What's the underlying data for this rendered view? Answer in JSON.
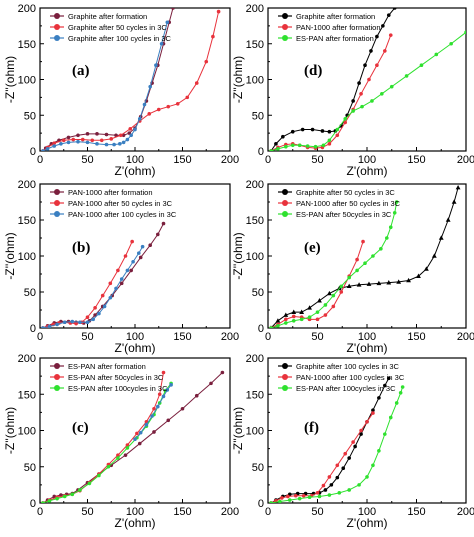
{
  "colors": {
    "black": "#000000",
    "dark_red": "#7a1f3d",
    "red": "#e8323c",
    "blue": "#3a7fc1",
    "green": "#2ee12e"
  },
  "chart_data": [
    {
      "id": "a",
      "letter": "(a)",
      "type": "line",
      "xlabel": "Z'(ohm)",
      "ylabel": "-Z''(ohm)",
      "xlim": [
        0,
        200
      ],
      "ylim": [
        0,
        200
      ],
      "xticks": [
        0,
        50,
        100,
        150,
        200
      ],
      "yticks": [
        0,
        50,
        100,
        150,
        200
      ],
      "series": [
        {
          "name": "Graphite after formation",
          "color": "#7a1f3d",
          "marker": "circle",
          "x": [
            3,
            6,
            12,
            20,
            30,
            40,
            50,
            60,
            70,
            80,
            88,
            94,
            100,
            106,
            112,
            118,
            124,
            130,
            136,
            140
          ],
          "y": [
            0,
            4,
            10,
            15,
            19,
            22,
            24,
            24,
            23,
            22,
            22,
            25,
            32,
            48,
            70,
            95,
            120,
            150,
            180,
            200
          ]
        },
        {
          "name": "Graphite after 50 cycles in 3C",
          "color": "#e8323c",
          "marker": "circle",
          "x": [
            3,
            8,
            15,
            25,
            35,
            45,
            55,
            65,
            75,
            85,
            95,
            105,
            115,
            125,
            135,
            145,
            155,
            165,
            175,
            182,
            188
          ],
          "y": [
            0,
            5,
            11,
            15,
            16,
            16,
            15,
            15,
            17,
            22,
            31,
            42,
            52,
            58,
            62,
            66,
            75,
            95,
            125,
            160,
            195
          ]
        },
        {
          "name": "Graphite after 100 cycles in 3C",
          "color": "#3a7fc1",
          "marker": "circle",
          "x": [
            3,
            8,
            15,
            22,
            30,
            40,
            50,
            60,
            70,
            78,
            84,
            88,
            92,
            96,
            100,
            105,
            110,
            116,
            122,
            128,
            134
          ],
          "y": [
            0,
            3,
            7,
            10,
            12,
            13,
            12,
            10,
            9,
            9,
            10,
            12,
            16,
            22,
            30,
            45,
            65,
            90,
            120,
            150,
            180
          ]
        }
      ]
    },
    {
      "id": "d",
      "letter": "(d)",
      "type": "line",
      "xlabel": "Z'(ohm)",
      "ylabel": "-Z''(ohm)",
      "xlim": [
        0,
        200
      ],
      "ylim": [
        0,
        200
      ],
      "xticks": [
        0,
        50,
        100,
        150,
        200
      ],
      "yticks": [
        0,
        50,
        100,
        150,
        200
      ],
      "series": [
        {
          "name": "Graphite after formation",
          "color": "#000000",
          "marker": "circle",
          "x": [
            3,
            8,
            15,
            25,
            35,
            45,
            55,
            62,
            68,
            74,
            80,
            86,
            92,
            98,
            104,
            110,
            116,
            122,
            128
          ],
          "y": [
            0,
            10,
            20,
            27,
            30,
            30,
            28,
            27,
            28,
            35,
            50,
            70,
            95,
            120,
            140,
            160,
            175,
            190,
            200
          ]
        },
        {
          "name": "PAN-1000 after formation",
          "color": "#e8323c",
          "marker": "circle",
          "x": [
            3,
            10,
            18,
            25,
            32,
            40,
            48,
            55,
            62,
            70,
            78,
            86,
            94,
            102,
            110,
            118,
            124
          ],
          "y": [
            0,
            5,
            9,
            10,
            8,
            5,
            4,
            5,
            10,
            22,
            40,
            58,
            80,
            100,
            120,
            140,
            162
          ]
        },
        {
          "name": "ES-PAN after formation",
          "color": "#2ee12e",
          "marker": "circle",
          "x": [
            3,
            10,
            18,
            25,
            32,
            40,
            48,
            56,
            62,
            70,
            78,
            86,
            95,
            105,
            115,
            125,
            140,
            155,
            170,
            185,
            200
          ],
          "y": [
            0,
            3,
            6,
            8,
            8,
            7,
            6,
            8,
            15,
            30,
            45,
            56,
            62,
            70,
            80,
            90,
            105,
            120,
            135,
            150,
            166
          ]
        }
      ]
    },
    {
      "id": "b",
      "letter": "(b)",
      "type": "line",
      "xlabel": "Z'(ohm)",
      "ylabel": "-Z''(ohm)",
      "xlim": [
        0,
        200
      ],
      "ylim": [
        0,
        200
      ],
      "xticks": [
        0,
        50,
        100,
        150,
        200
      ],
      "yticks": [
        0,
        50,
        100,
        150,
        200
      ],
      "series": [
        {
          "name": "PAN-1000 after formation",
          "color": "#7a1f3d",
          "marker": "circle",
          "x": [
            3,
            8,
            15,
            22,
            30,
            38,
            46,
            52,
            58,
            66,
            76,
            86,
            96,
            106,
            116,
            124,
            130
          ],
          "y": [
            0,
            3,
            7,
            9,
            9,
            8,
            7,
            10,
            18,
            30,
            45,
            62,
            80,
            98,
            115,
            130,
            145
          ]
        },
        {
          "name": "PAN-1000 after 50 cycles in 3C",
          "color": "#e8323c",
          "marker": "circle",
          "x": [
            3,
            8,
            14,
            20,
            26,
            32,
            38,
            44,
            50,
            58,
            66,
            74,
            82,
            90,
            97
          ],
          "y": [
            0,
            2,
            5,
            7,
            8,
            7,
            6,
            8,
            15,
            28,
            45,
            62,
            80,
            100,
            120
          ]
        },
        {
          "name": "PAN-1000 after 100 cycles in 3C",
          "color": "#3a7fc1",
          "marker": "circle",
          "x": [
            3,
            10,
            18,
            26,
            34,
            42,
            50,
            56,
            62,
            68,
            74,
            80,
            86,
            92,
            98,
            104,
            108
          ],
          "y": [
            0,
            2,
            5,
            8,
            9,
            8,
            8,
            12,
            20,
            30,
            42,
            55,
            68,
            80,
            92,
            104,
            113
          ]
        }
      ]
    },
    {
      "id": "e",
      "letter": "(e)",
      "type": "line",
      "xlabel": "Z'(ohm)",
      "ylabel": "-Z''(ohm)",
      "xlim": [
        0,
        200
      ],
      "ylim": [
        0,
        200
      ],
      "xticks": [
        0,
        50,
        100,
        150,
        200
      ],
      "yticks": [
        0,
        50,
        100,
        150,
        200
      ],
      "series": [
        {
          "name": "Graphite after 50 cycles in 3C",
          "color": "#000000",
          "marker": "triangle",
          "x": [
            3,
            10,
            18,
            26,
            34,
            42,
            52,
            62,
            72,
            82,
            92,
            102,
            112,
            122,
            132,
            142,
            152,
            160,
            168,
            175,
            182,
            188,
            192
          ],
          "y": [
            0,
            10,
            18,
            22,
            22,
            28,
            38,
            48,
            55,
            58,
            60,
            61,
            62,
            63,
            64,
            66,
            72,
            82,
            100,
            125,
            150,
            175,
            195
          ]
        },
        {
          "name": "PAN-1000 after 50 cycles in 3C",
          "color": "#e8323c",
          "marker": "circle",
          "x": [
            3,
            10,
            18,
            26,
            34,
            42,
            50,
            58,
            66,
            74,
            82,
            90,
            96
          ],
          "y": [
            0,
            5,
            12,
            16,
            15,
            12,
            12,
            18,
            30,
            50,
            72,
            95,
            120
          ]
        },
        {
          "name": "ES-PAN after 50cycles in 3C",
          "color": "#2ee12e",
          "marker": "circle",
          "x": [
            3,
            10,
            18,
            26,
            34,
            42,
            50,
            58,
            66,
            74,
            82,
            90,
            98,
            106,
            114,
            120,
            124,
            128,
            130
          ],
          "y": [
            0,
            3,
            7,
            10,
            12,
            15,
            22,
            32,
            45,
            58,
            70,
            80,
            90,
            100,
            110,
            125,
            140,
            160,
            175
          ]
        }
      ]
    },
    {
      "id": "c",
      "letter": "(c)",
      "type": "line",
      "xlabel": "Z'(ohm)",
      "ylabel": "-Z''(ohm)",
      "xlim": [
        0,
        200
      ],
      "ylim": [
        0,
        200
      ],
      "xticks": [
        0,
        50,
        100,
        150,
        200
      ],
      "yticks": [
        0,
        50,
        100,
        150,
        200
      ],
      "series": [
        {
          "name": "ES-PAN after formation",
          "color": "#7a1f3d",
          "marker": "circle",
          "x": [
            3,
            8,
            15,
            22,
            28,
            34,
            40,
            50,
            62,
            75,
            90,
            105,
            120,
            135,
            150,
            165,
            180,
            192
          ],
          "y": [
            0,
            4,
            9,
            11,
            12,
            13,
            18,
            28,
            40,
            52,
            66,
            82,
            98,
            114,
            130,
            148,
            165,
            180
          ]
        },
        {
          "name": "ES-PAN after 50cycles in 3C",
          "color": "#e8323c",
          "marker": "circle",
          "x": [
            3,
            10,
            18,
            26,
            34,
            42,
            52,
            62,
            72,
            82,
            92,
            102,
            112,
            120,
            126,
            130
          ],
          "y": [
            0,
            4,
            8,
            10,
            12,
            17,
            28,
            40,
            53,
            66,
            80,
            96,
            112,
            130,
            150,
            180
          ]
        },
        {
          "name": "ES-PAN after 100cycles in 3C",
          "color": "#2ee12e",
          "marker": "circle",
          "x": [
            3,
            10,
            18,
            26,
            34,
            42,
            52,
            62,
            72,
            82,
            92,
            102,
            112,
            120,
            126,
            132,
            138
          ],
          "y": [
            0,
            3,
            6,
            9,
            12,
            18,
            27,
            38,
            50,
            62,
            76,
            90,
            106,
            122,
            138,
            155,
            165
          ]
        },
        {
          "name": "",
          "color": "#3a7fc1",
          "marker": "circle",
          "x": [
            100,
            106,
            112,
            118,
            124,
            130,
            134,
            138
          ],
          "y": [
            88,
            97,
            108,
            120,
            133,
            147,
            156,
            163
          ]
        }
      ]
    },
    {
      "id": "f",
      "letter": "(f)",
      "type": "line",
      "xlabel": "Z'(ohm)",
      "ylabel": "-Z''(ohm)",
      "xlim": [
        0,
        200
      ],
      "ylim": [
        0,
        200
      ],
      "xticks": [
        0,
        50,
        100,
        150,
        200
      ],
      "yticks": [
        0,
        50,
        100,
        150,
        200
      ],
      "series": [
        {
          "name": "Graphite after 100 cycles in 3C",
          "color": "#000000",
          "marker": "circle",
          "x": [
            3,
            8,
            15,
            22,
            30,
            38,
            46,
            52,
            58,
            64,
            70,
            76,
            82,
            88,
            94,
            100,
            106,
            112,
            118,
            122
          ],
          "y": [
            0,
            4,
            9,
            12,
            13,
            13,
            13,
            14,
            18,
            25,
            35,
            48,
            62,
            78,
            95,
            112,
            128,
            145,
            162,
            172
          ]
        },
        {
          "name": "PAN-1000 after 100 cycles in 3C",
          "color": "#e8323c",
          "marker": "circle",
          "x": [
            3,
            8,
            14,
            20,
            28,
            36,
            44,
            50,
            56,
            62,
            70,
            78,
            86,
            94,
            100,
            106
          ],
          "y": [
            0,
            3,
            7,
            9,
            10,
            10,
            10,
            14,
            24,
            36,
            52,
            68,
            84,
            100,
            112,
            124
          ]
        },
        {
          "name": "ES-PAN after 100cycles in 3C",
          "color": "#2ee12e",
          "marker": "circle",
          "x": [
            3,
            12,
            22,
            32,
            42,
            52,
            62,
            72,
            82,
            92,
            100,
            106,
            112,
            118,
            124,
            130,
            134,
            136
          ],
          "y": [
            0,
            2,
            4,
            6,
            8,
            9,
            11,
            14,
            18,
            25,
            36,
            52,
            72,
            95,
            118,
            138,
            152,
            160
          ]
        }
      ]
    }
  ]
}
